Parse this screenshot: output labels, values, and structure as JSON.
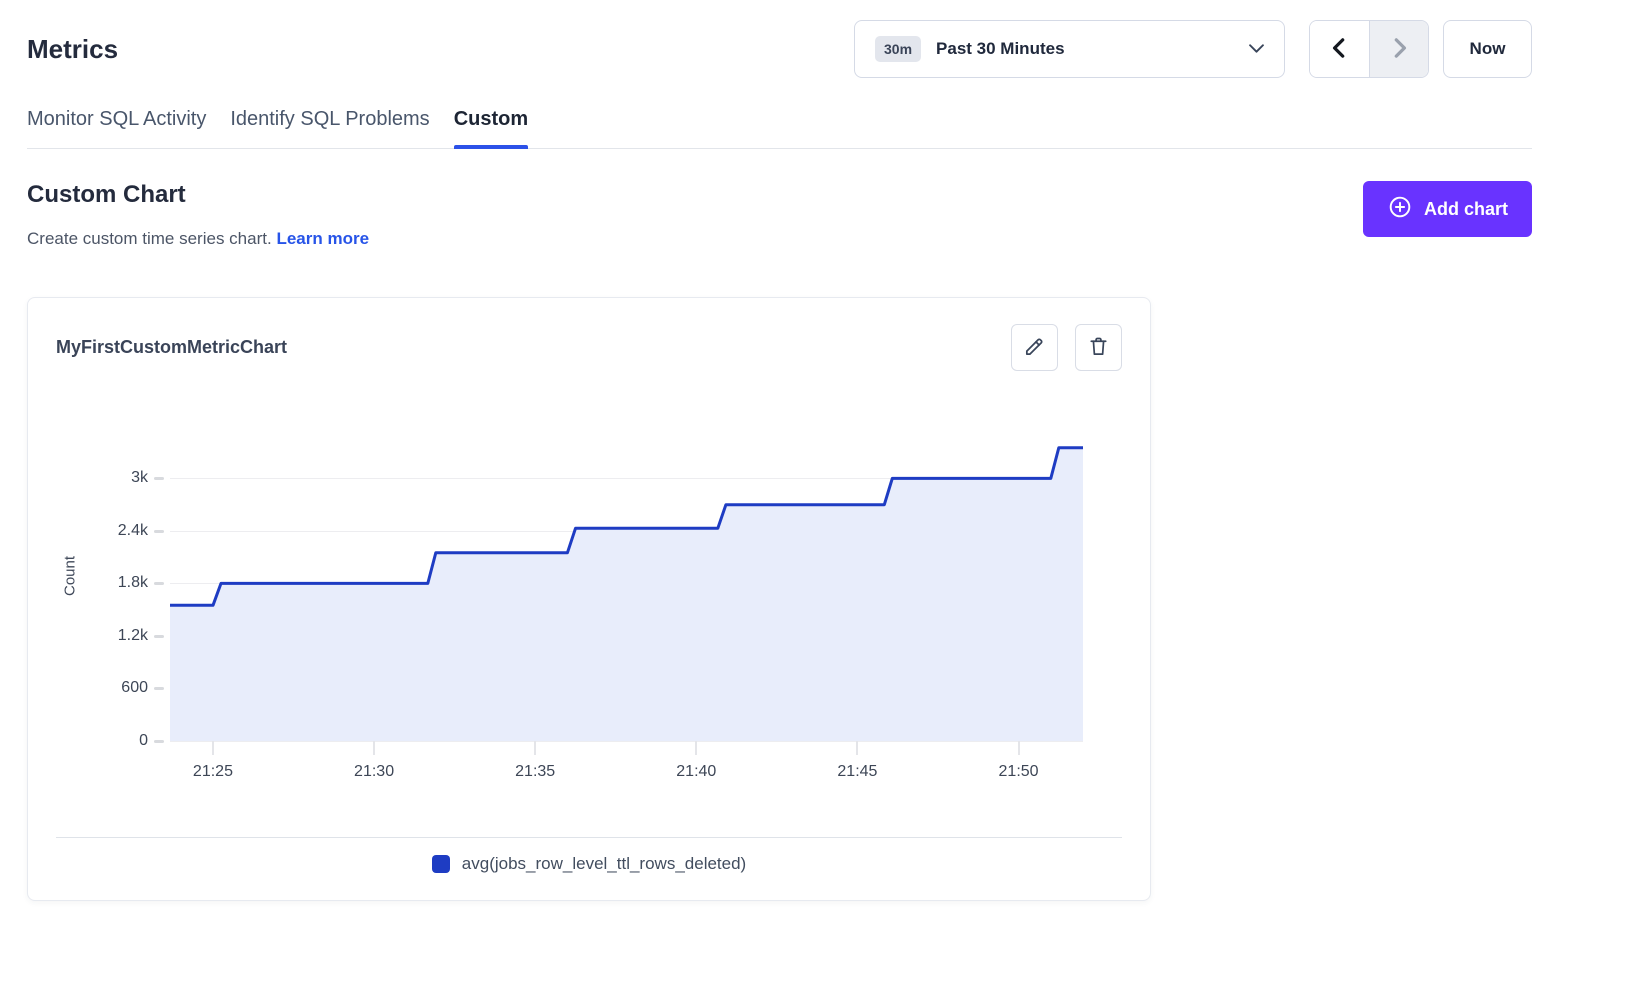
{
  "header": {
    "title": "Metrics",
    "time_selector": {
      "badge": "30m",
      "label": "Past 30 Minutes"
    },
    "now_button": "Now"
  },
  "tabs": [
    {
      "label": "Monitor SQL Activity",
      "active": false
    },
    {
      "label": "Identify SQL Problems",
      "active": false
    },
    {
      "label": "Custom",
      "active": true
    }
  ],
  "page": {
    "heading": "Custom Chart",
    "subtitle": "Create custom time series chart.",
    "learn_more": "Learn more",
    "add_chart_button": "Add chart"
  },
  "card": {
    "title": "MyFirstCustomMetricChart",
    "action_icons": [
      "edit-pencil",
      "delete-trash"
    ]
  },
  "colors": {
    "accent_purple": "#6933ff",
    "link_blue": "#2754e8",
    "tab_underline": "#2c51e8",
    "line": "#1e3cc3",
    "fill": "#e8edfb",
    "legend_swatch": "#1e3cc3"
  },
  "chart_data": {
    "type": "area",
    "step": true,
    "title": "MyFirstCustomMetricChart",
    "xlabel": "",
    "ylabel": "Count",
    "legend": [
      "avg(jobs_row_level_ttl_rows_deleted)"
    ],
    "legend_position": "bottom",
    "grid": true,
    "x_range": [
      "21:23:40",
      "21:52:00"
    ],
    "ylim": [
      0,
      3770
    ],
    "y_ticks": [
      {
        "v": 0,
        "label": "0"
      },
      {
        "v": 600,
        "label": "600"
      },
      {
        "v": 1200,
        "label": "1.2k"
      },
      {
        "v": 1800,
        "label": "1.8k"
      },
      {
        "v": 2400,
        "label": "2.4k"
      },
      {
        "v": 3000,
        "label": "3k"
      }
    ],
    "x_ticks": [
      {
        "t": "21:25:00",
        "label": "21:25"
      },
      {
        "t": "21:30:00",
        "label": "21:30"
      },
      {
        "t": "21:35:00",
        "label": "21:35"
      },
      {
        "t": "21:40:00",
        "label": "21:40"
      },
      {
        "t": "21:45:00",
        "label": "21:45"
      },
      {
        "t": "21:50:00",
        "label": "21:50"
      }
    ],
    "series": [
      {
        "name": "avg(jobs_row_level_ttl_rows_deleted)",
        "points": [
          [
            "21:23:40",
            1550
          ],
          [
            "21:25:00",
            1550
          ],
          [
            "21:25:15",
            1800
          ],
          [
            "21:31:40",
            1800
          ],
          [
            "21:31:55",
            2150
          ],
          [
            "21:36:00",
            2150
          ],
          [
            "21:36:15",
            2430
          ],
          [
            "21:40:40",
            2430
          ],
          [
            "21:40:55",
            2700
          ],
          [
            "21:45:50",
            2700
          ],
          [
            "21:46:05",
            3000
          ],
          [
            "21:51:00",
            3000
          ],
          [
            "21:51:15",
            3350
          ],
          [
            "21:52:00",
            3350
          ]
        ]
      }
    ]
  }
}
